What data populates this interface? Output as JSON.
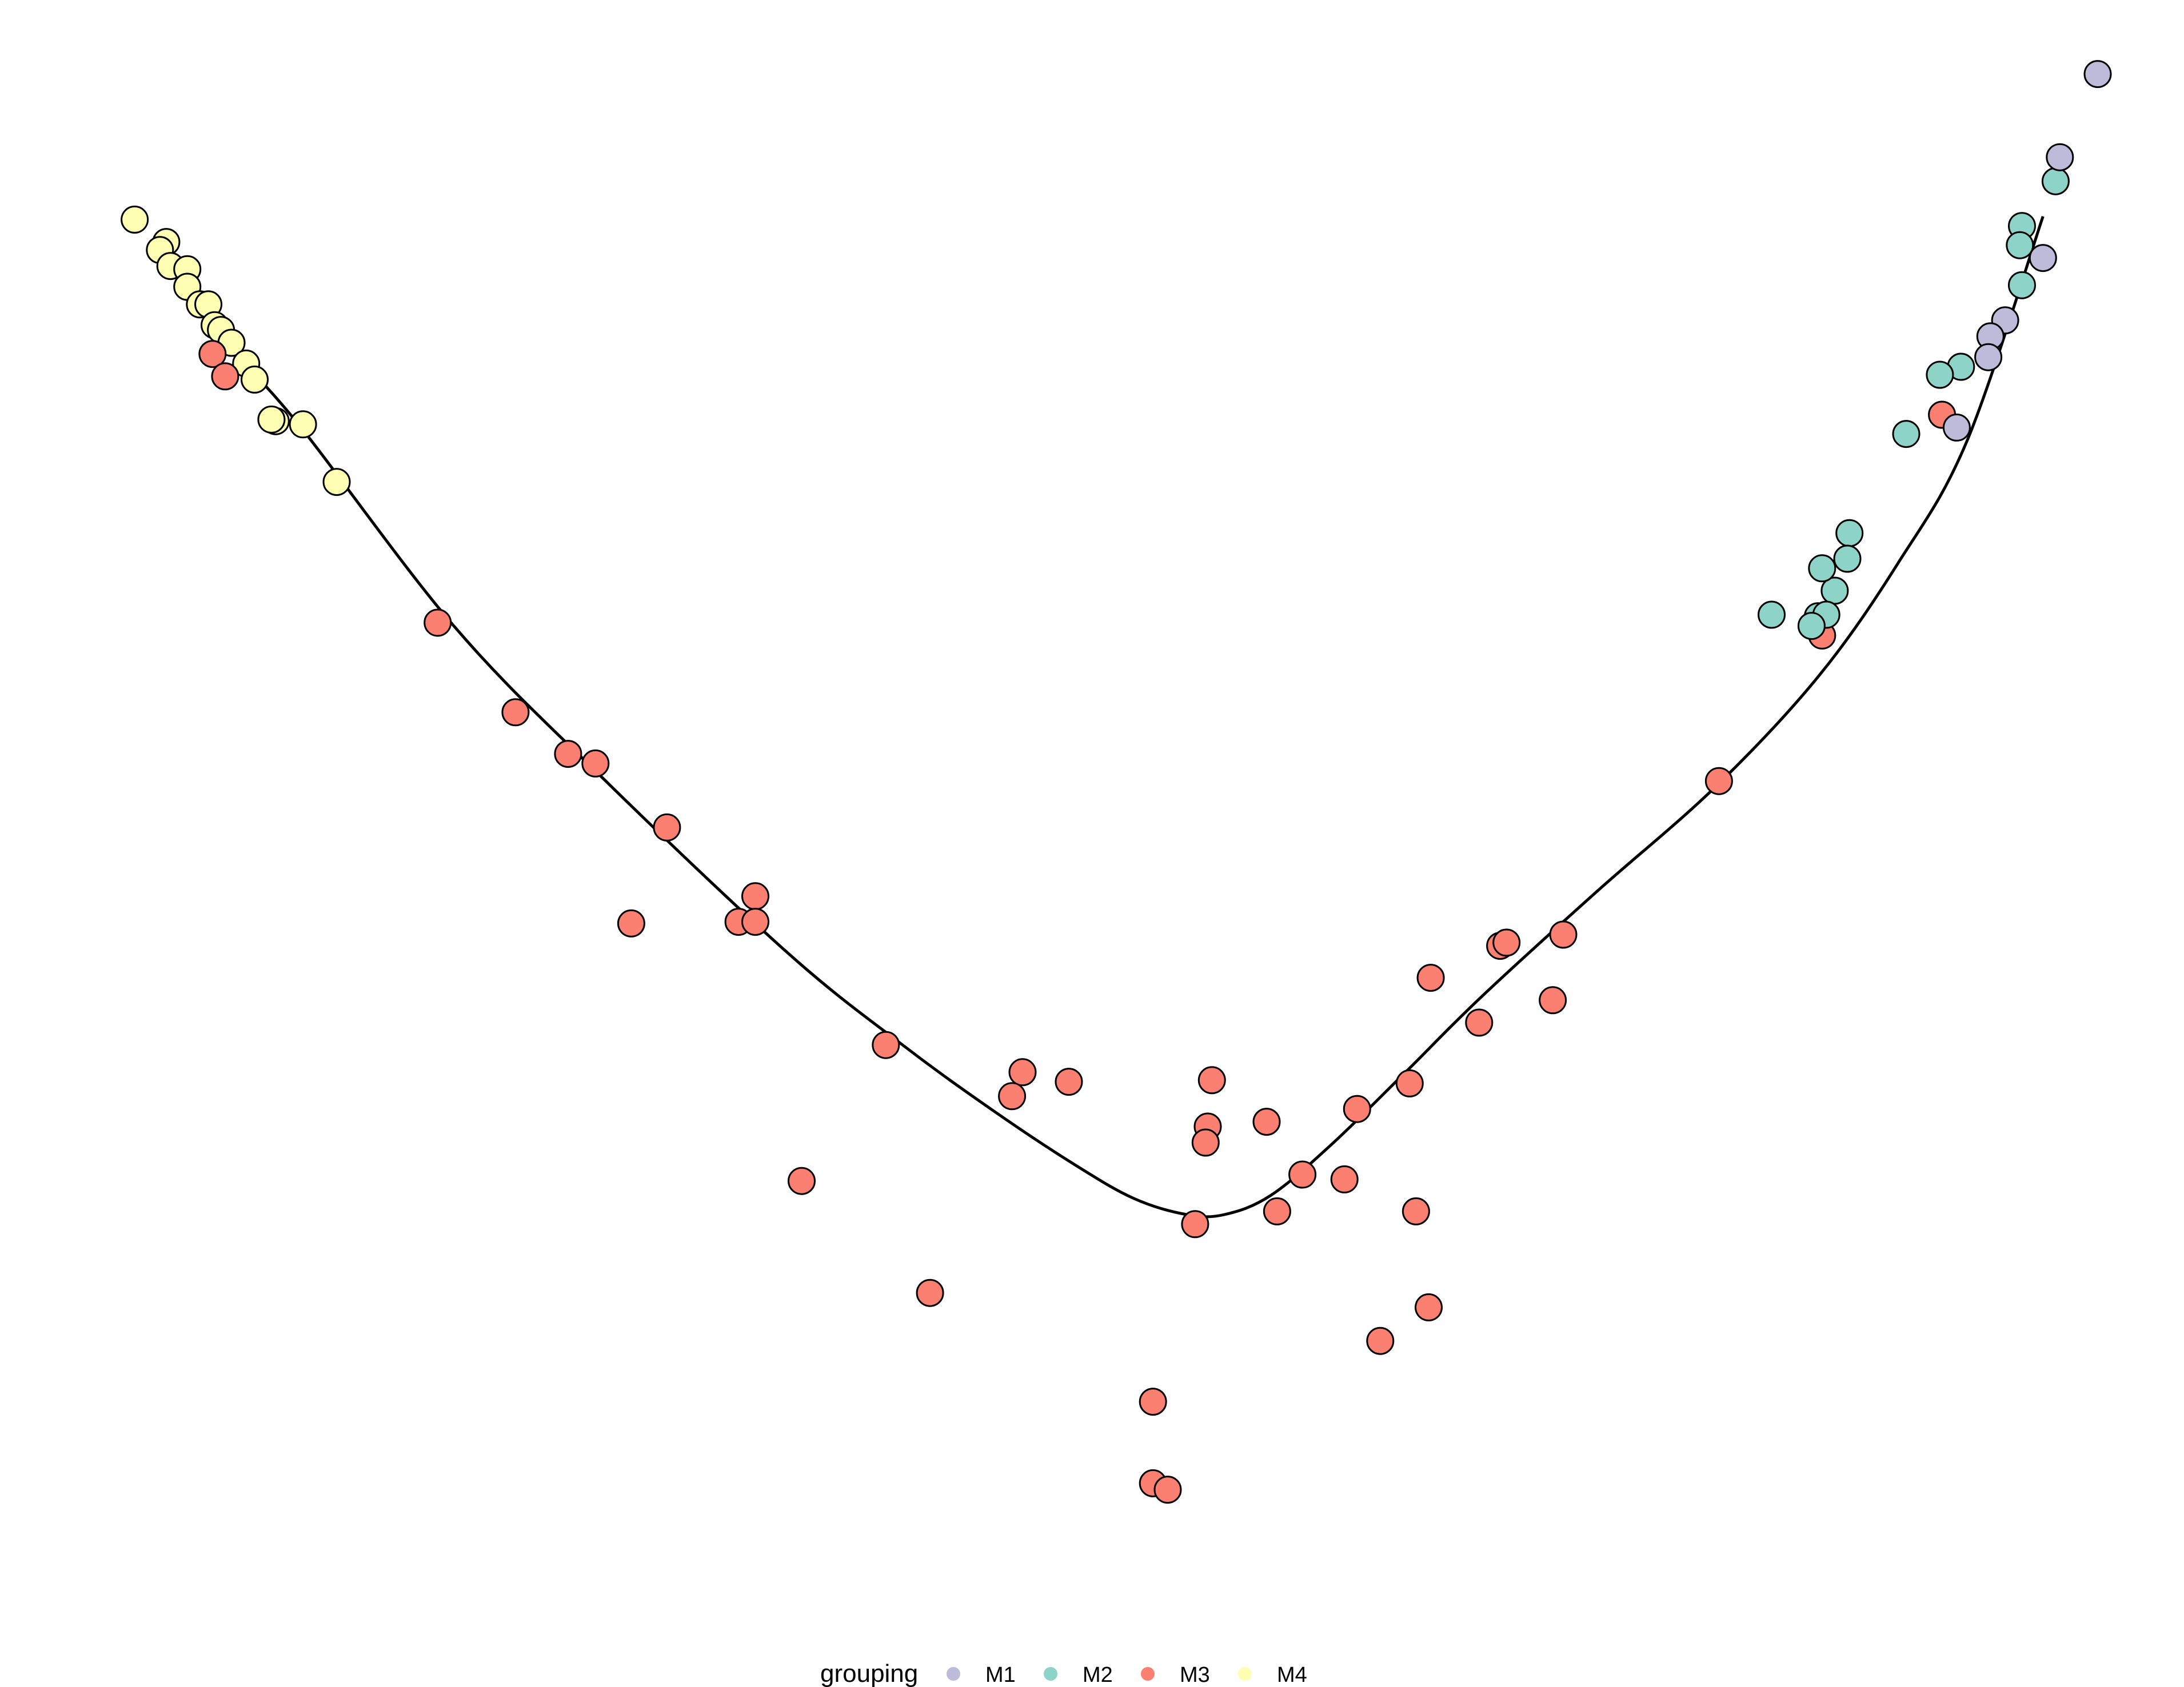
{
  "chart_data": {
    "type": "scatter",
    "title": "",
    "xlabel": "",
    "ylabel": "",
    "axes_visible": false,
    "grid": false,
    "legend": {
      "title": "grouping",
      "position": "bottom",
      "entries": [
        {
          "name": "M1",
          "color": "#bebada"
        },
        {
          "name": "M2",
          "color": "#8dd3c7"
        },
        {
          "name": "M3",
          "color": "#fb8072"
        },
        {
          "name": "M4",
          "color": "#ffffb3"
        }
      ]
    },
    "xlim": [
      0,
      100
    ],
    "ylim": [
      0,
      100
    ],
    "series": [
      {
        "name": "M1",
        "color": "#bebada",
        "points": [
          [
            97.8,
            96.8
          ],
          [
            96.0,
            91.6
          ],
          [
            95.2,
            85.3
          ],
          [
            93.4,
            81.4
          ],
          [
            92.7,
            80.4
          ],
          [
            92.6,
            79.1
          ],
          [
            91.1,
            74.7
          ]
        ]
      },
      {
        "name": "M2",
        "color": "#8dd3c7",
        "points": [
          [
            95.8,
            90.1
          ],
          [
            94.2,
            87.3
          ],
          [
            94.1,
            86.1
          ],
          [
            94.2,
            83.6
          ],
          [
            91.3,
            78.5
          ],
          [
            90.3,
            78.0
          ],
          [
            88.7,
            74.3
          ],
          [
            86.0,
            68.1
          ],
          [
            85.9,
            66.5
          ],
          [
            85.3,
            64.5
          ],
          [
            84.7,
            65.9
          ],
          [
            84.5,
            62.9
          ],
          [
            84.9,
            63.0
          ],
          [
            82.3,
            63.0
          ],
          [
            84.2,
            62.3
          ]
        ]
      },
      {
        "name": "M3",
        "color": "#fb8072",
        "points": [
          [
            8.2,
            79.3
          ],
          [
            8.8,
            77.9
          ],
          [
            90.4,
            75.5
          ],
          [
            84.7,
            61.7
          ],
          [
            18.9,
            62.5
          ],
          [
            22.6,
            56.9
          ],
          [
            25.1,
            54.3
          ],
          [
            26.4,
            53.7
          ],
          [
            79.8,
            52.6
          ],
          [
            29.8,
            49.7
          ],
          [
            34.0,
            45.4
          ],
          [
            28.1,
            43.7
          ],
          [
            33.2,
            43.8
          ],
          [
            34.0,
            43.8
          ],
          [
            72.4,
            43.0
          ],
          [
            69.4,
            42.3
          ],
          [
            69.7,
            42.5
          ],
          [
            66.1,
            40.3
          ],
          [
            71.9,
            38.9
          ],
          [
            68.4,
            37.5
          ],
          [
            40.2,
            36.1
          ],
          [
            46.7,
            34.4
          ],
          [
            46.2,
            32.9
          ],
          [
            48.9,
            33.8
          ],
          [
            55.7,
            33.9
          ],
          [
            55.5,
            31.0
          ],
          [
            55.4,
            30.0
          ],
          [
            58.3,
            31.3
          ],
          [
            62.6,
            32.1
          ],
          [
            65.1,
            33.7
          ],
          [
            36.2,
            27.6
          ],
          [
            60.0,
            28.0
          ],
          [
            62.0,
            27.7
          ],
          [
            65.4,
            25.7
          ],
          [
            54.9,
            24.9
          ],
          [
            58.8,
            25.7
          ],
          [
            42.3,
            20.6
          ],
          [
            66.0,
            19.7
          ],
          [
            63.7,
            17.6
          ],
          [
            52.9,
            13.8
          ],
          [
            52.9,
            8.7
          ],
          [
            53.6,
            8.3
          ]
        ]
      },
      {
        "name": "M4",
        "color": "#ffffb3",
        "points": [
          [
            4.5,
            87.7
          ],
          [
            6.0,
            86.3
          ],
          [
            5.7,
            85.8
          ],
          [
            6.2,
            84.8
          ],
          [
            7.0,
            84.6
          ],
          [
            7.0,
            83.5
          ],
          [
            7.6,
            82.4
          ],
          [
            8.0,
            82.4
          ],
          [
            8.3,
            81.1
          ],
          [
            8.6,
            80.8
          ],
          [
            9.1,
            80.0
          ],
          [
            9.8,
            78.7
          ],
          [
            10.2,
            77.7
          ],
          [
            11.2,
            75.1
          ],
          [
            11.0,
            75.2
          ],
          [
            12.5,
            74.9
          ],
          [
            14.1,
            71.3
          ]
        ]
      }
    ],
    "curve": {
      "points": [
        [
          8.4,
          80.4
        ],
        [
          12.1,
          75.2
        ],
        [
          19.6,
          62.4
        ],
        [
          26.5,
          53.1
        ],
        [
          35.5,
          41.9
        ],
        [
          41.0,
          36.1
        ],
        [
          45.3,
          32.0
        ],
        [
          49.2,
          28.6
        ],
        [
          52.0,
          26.5
        ],
        [
          54.5,
          25.5
        ],
        [
          56.3,
          25.5
        ],
        [
          58.5,
          26.7
        ],
        [
          61.4,
          29.9
        ],
        [
          64.9,
          34.4
        ],
        [
          68.5,
          39.1
        ],
        [
          74.0,
          45.7
        ],
        [
          79.6,
          52.2
        ],
        [
          84.5,
          59.1
        ],
        [
          88.3,
          66.2
        ],
        [
          91.6,
          73.9
        ],
        [
          95.2,
          87.9
        ]
      ]
    }
  }
}
